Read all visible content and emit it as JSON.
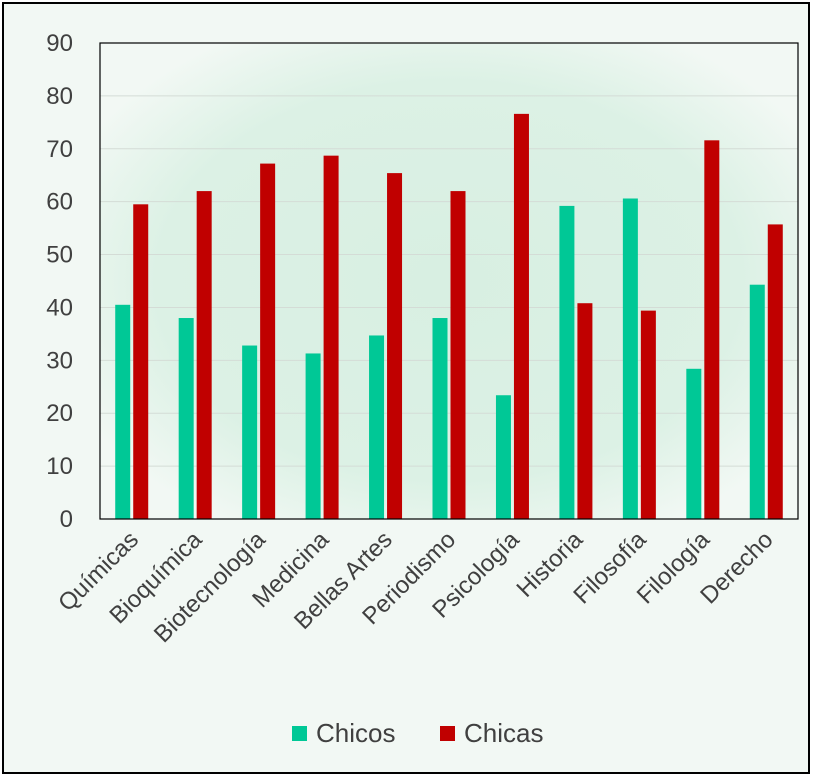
{
  "chart_data": {
    "type": "bar",
    "categories": [
      "Químicas",
      "Bioquímica",
      "Biotecnología",
      "Medicina",
      "Bellas Artes",
      "Periodismo",
      "Psicología",
      "Historia",
      "Filosofía",
      "Filología",
      "Derecho"
    ],
    "series": [
      {
        "name": "Chicos",
        "color": "#00c896",
        "values": [
          40.5,
          38,
          32.8,
          31.3,
          34.7,
          38,
          23.4,
          59.2,
          60.6,
          28.4,
          44.3
        ]
      },
      {
        "name": "Chicas",
        "color": "#c00000",
        "values": [
          59.5,
          62,
          67.2,
          68.7,
          65.4,
          62,
          76.6,
          40.8,
          39.4,
          71.6,
          55.7
        ]
      }
    ],
    "yticks": [
      "0",
      "10",
      "20",
      "30",
      "40",
      "50",
      "60",
      "70",
      "80",
      "90"
    ],
    "ylim": [
      0,
      90
    ],
    "grid": true,
    "legend_position": "bottom"
  }
}
